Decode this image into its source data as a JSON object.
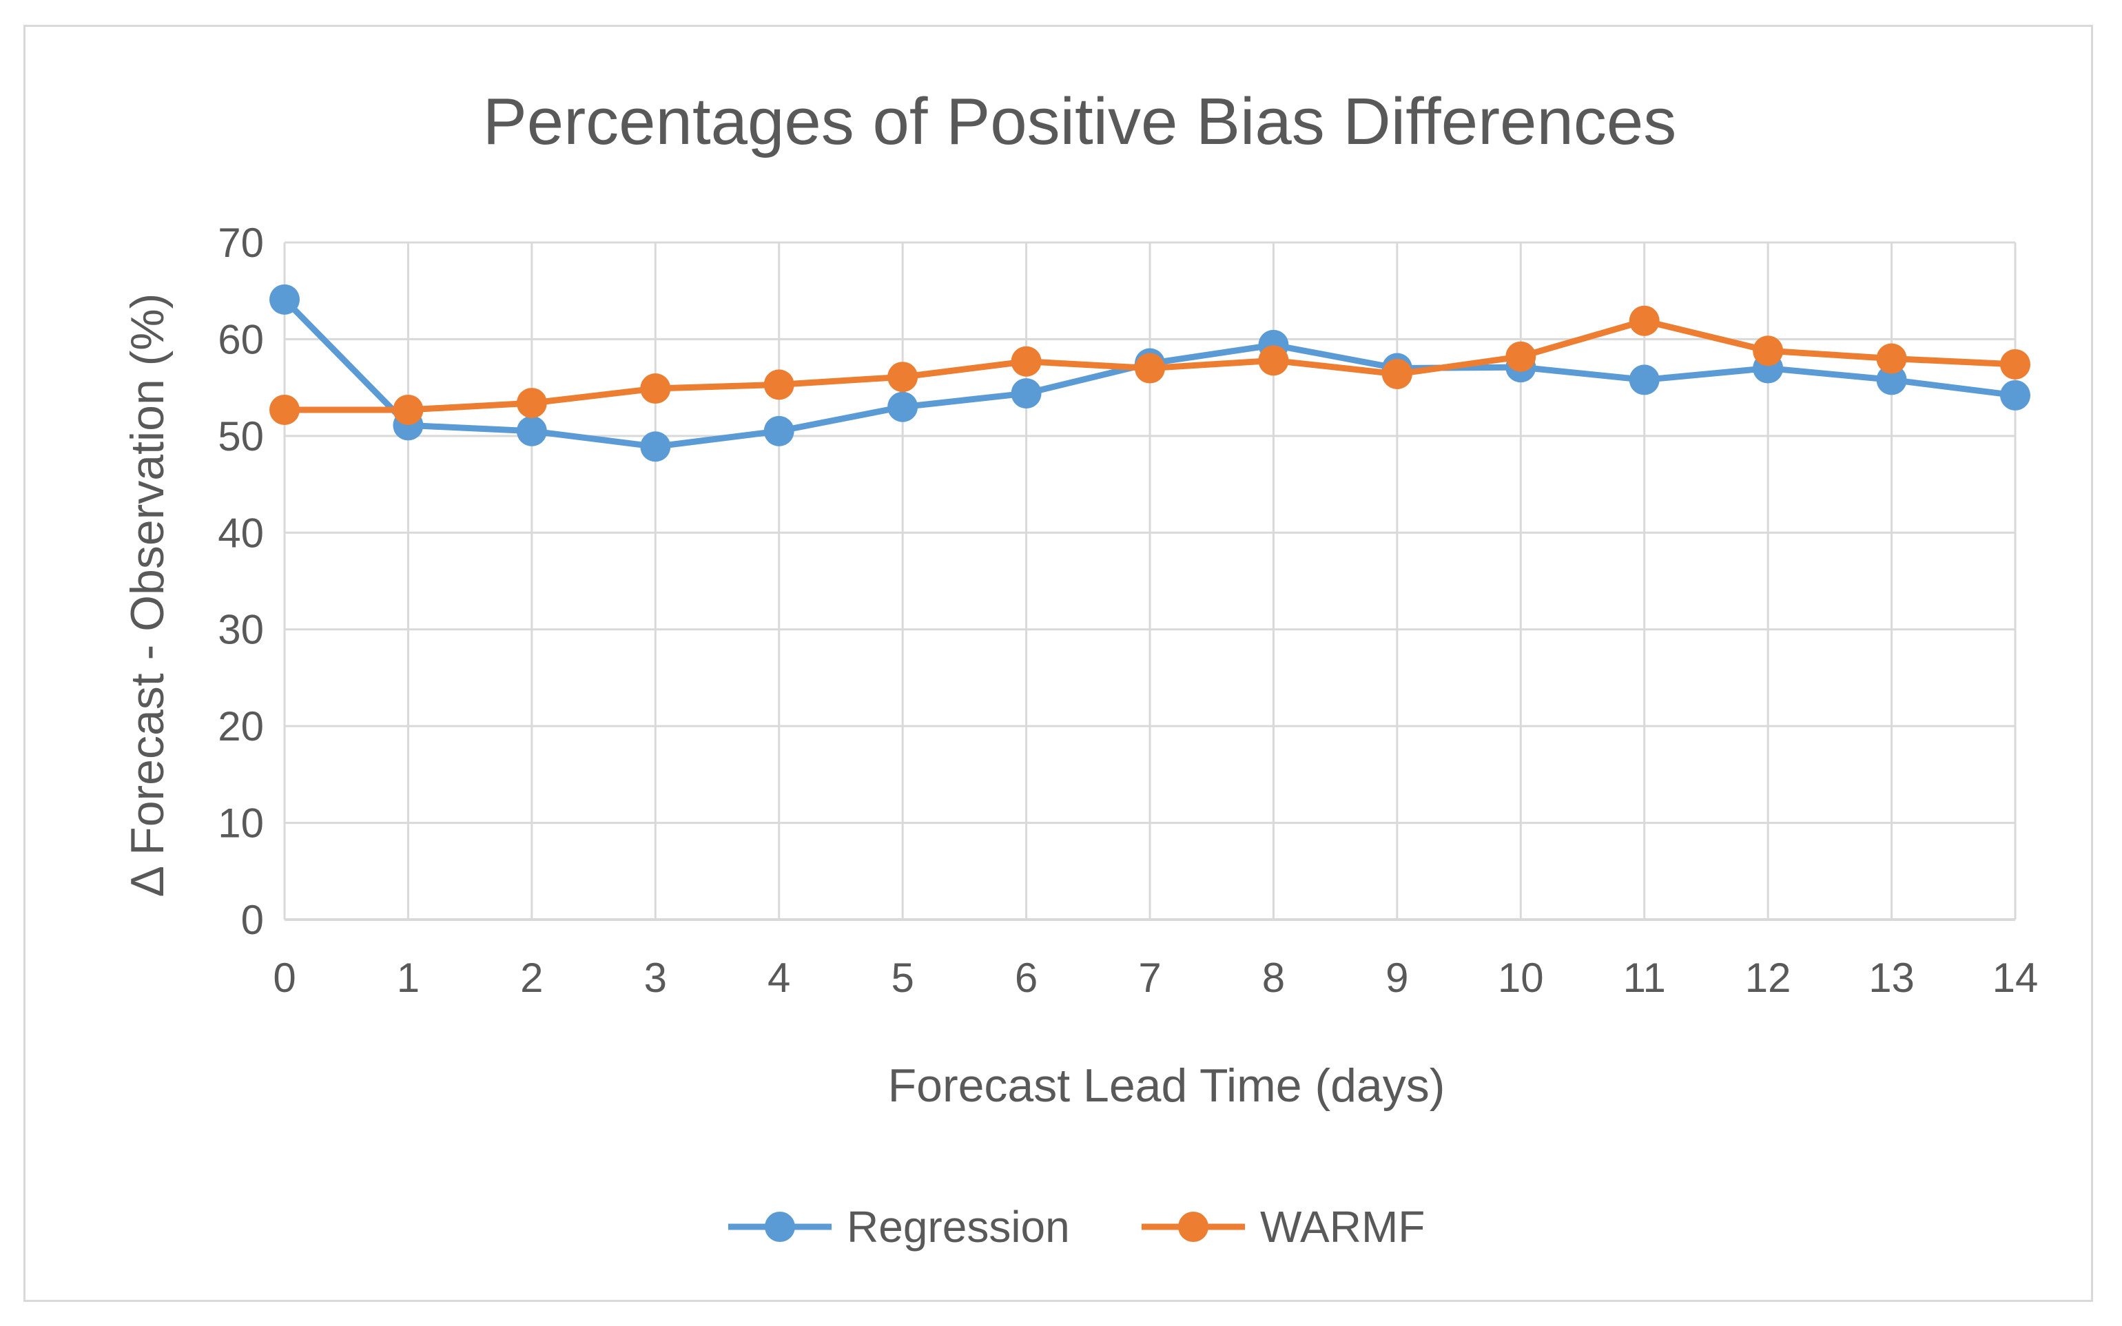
{
  "chart_data": {
    "type": "line",
    "title": "Percentages of Positive Bias Differences",
    "xlabel": "Forecast Lead Time (days)",
    "ylabel": "Δ Forecast - Observation (%)",
    "x": [
      0,
      1,
      2,
      3,
      4,
      5,
      6,
      7,
      8,
      9,
      10,
      11,
      12,
      13,
      14
    ],
    "ylim": [
      0,
      70
    ],
    "yticks": [
      0,
      10,
      20,
      30,
      40,
      50,
      60,
      70
    ],
    "grid": true,
    "legend_position": "bottom",
    "series": [
      {
        "name": "Regression",
        "color": "#5b9bd5",
        "values": [
          64.1,
          51.1,
          50.5,
          48.9,
          50.5,
          53.0,
          54.4,
          57.5,
          59.4,
          57.0,
          57.1,
          55.8,
          57.0,
          55.8,
          54.2
        ]
      },
      {
        "name": "WARMF",
        "color": "#ed7d31",
        "values": [
          52.7,
          52.7,
          53.4,
          54.9,
          55.3,
          56.1,
          57.7,
          57.0,
          57.8,
          56.4,
          58.2,
          61.9,
          58.8,
          58.0,
          57.4
        ]
      }
    ]
  }
}
